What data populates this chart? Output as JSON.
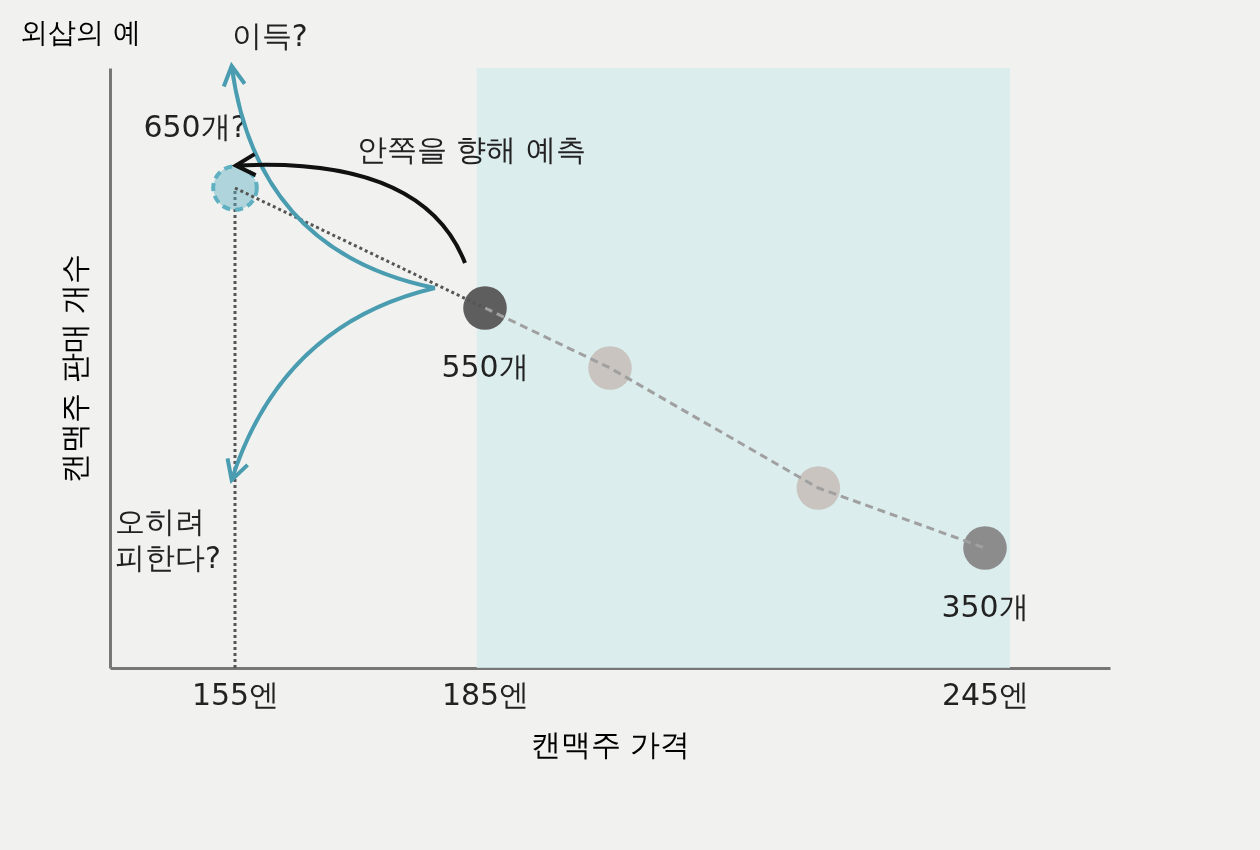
{
  "chart_data": {
    "type": "line",
    "title": "외삽의 예",
    "xlabel": "캔맥주 가격",
    "ylabel": "캔맥주 판매 개수",
    "xlim": [
      140,
      260
    ],
    "ylim": [
      250,
      750
    ],
    "xticks": [
      {
        "value": 155,
        "label": "155엔"
      },
      {
        "value": 185,
        "label": "185엔"
      },
      {
        "value": 245,
        "label": "245엔"
      }
    ],
    "tick_labels": "x",
    "grid": false,
    "ref_lines": [
      {
        "axis": "x",
        "value": 155,
        "color": "#555555",
        "line_style": "dotted"
      }
    ],
    "bands": [
      {
        "axis": "x",
        "from": 184,
        "to": 248,
        "color": "#d7ebee"
      }
    ],
    "annotations": [
      "이득?",
      "안쪽을 향해 예측",
      "오히려 피한다?"
    ],
    "series": [
      {
        "x": [
          185,
          200,
          225,
          245
        ],
        "values": [
          550,
          500,
          400,
          350
        ],
        "color": "#a0a0a0",
        "colors": [
          "#5e5e5e",
          "#c9c4bf",
          "#c9c4bf",
          "#8c8c8c"
        ],
        "marker": "circle",
        "line_style": "dashed",
        "value_labels": [
          "550개",
          null,
          null,
          "350개"
        ]
      },
      {
        "type": "line",
        "x": [
          155,
          185
        ],
        "values": [
          650,
          550
        ],
        "color": "#555555",
        "line_style": "dotted"
      },
      {
        "type": "scatter",
        "x": [
          155
        ],
        "values": [
          650
        ],
        "color": "#5fb0c0",
        "marker": "circle",
        "line_style": "dashed",
        "value_labels": [
          "650개?"
        ]
      }
    ]
  }
}
